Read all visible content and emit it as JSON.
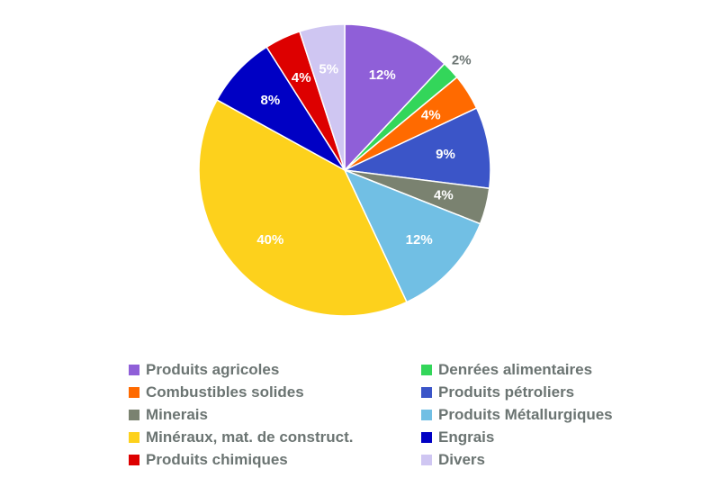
{
  "chart_data": {
    "type": "pie",
    "title": "",
    "categories": [
      "Produits agricoles",
      "Denrées alimentaires",
      "Combustibles solides",
      "Produits pétroliers",
      "Minerais",
      "Produits Métallurgiques",
      "Minéraux, mat. de construct.",
      "Engrais",
      "Produits chimiques",
      "Divers"
    ],
    "values": [
      12,
      2,
      4,
      9,
      4,
      12,
      40,
      8,
      4,
      5
    ],
    "labels": [
      "12%",
      "2%",
      "4%",
      "9%",
      "4%",
      "12%",
      "40%",
      "8%",
      "4%",
      "5%"
    ],
    "colors": [
      "#8f5fd8",
      "#33d65a",
      "#ff6a00",
      "#3b55c8",
      "#7a8270",
      "#71bfe4",
      "#fdd11c",
      "#0000c4",
      "#dd0000",
      "#cfc6f2"
    ],
    "legend_position": "bottom",
    "legend_columns": 2
  }
}
